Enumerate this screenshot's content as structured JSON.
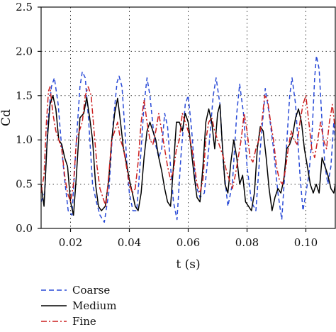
{
  "chart_data": {
    "type": "line",
    "title": "",
    "xlabel": "t (s)",
    "ylabel": "Cd",
    "xlim": [
      0.01,
      0.11
    ],
    "ylim": [
      0.0,
      2.5
    ],
    "x_ticks": [
      0.02,
      0.04,
      0.06,
      0.08,
      0.1
    ],
    "x_tick_labels": [
      "0.02",
      "0.04",
      "0.06",
      "0.08",
      "0.10"
    ],
    "y_ticks": [
      0.0,
      0.5,
      1.0,
      1.5,
      2.0,
      2.5
    ],
    "y_tick_labels": [
      "0.0",
      "0.5",
      "1.0",
      "1.5",
      "2.0",
      "2.5"
    ],
    "grid": "dotted",
    "legend_position": "bottom-left",
    "series": [
      {
        "name": "Coarse",
        "color": "#2a4bd7",
        "dash": "dashed",
        "points": [
          [
            0.01,
            0.3
          ],
          [
            0.0112,
            0.4
          ],
          [
            0.0123,
            1.2
          ],
          [
            0.0135,
            1.6
          ],
          [
            0.0145,
            1.7
          ],
          [
            0.0158,
            1.4
          ],
          [
            0.017,
            0.9
          ],
          [
            0.018,
            0.55
          ],
          [
            0.0192,
            0.2
          ],
          [
            0.0205,
            0.15
          ],
          [
            0.0218,
            0.9
          ],
          [
            0.0232,
            1.6
          ],
          [
            0.024,
            1.77
          ],
          [
            0.025,
            1.7
          ],
          [
            0.0262,
            1.2
          ],
          [
            0.0275,
            0.5
          ],
          [
            0.0288,
            0.3
          ],
          [
            0.03,
            0.15
          ],
          [
            0.0315,
            0.07
          ],
          [
            0.033,
            0.4
          ],
          [
            0.0345,
            1.2
          ],
          [
            0.0358,
            1.65
          ],
          [
            0.0365,
            1.72
          ],
          [
            0.0375,
            1.6
          ],
          [
            0.0385,
            1.1
          ],
          [
            0.0392,
            0.7
          ],
          [
            0.04,
            0.4
          ],
          [
            0.0412,
            0.2
          ],
          [
            0.0425,
            0.2
          ],
          [
            0.0438,
            0.8
          ],
          [
            0.045,
            1.4
          ],
          [
            0.046,
            1.7
          ],
          [
            0.047,
            1.5
          ],
          [
            0.0485,
            1.0
          ],
          [
            0.05,
            0.8
          ],
          [
            0.051,
            0.9
          ],
          [
            0.052,
            1.3
          ],
          [
            0.053,
            1.15
          ],
          [
            0.054,
            0.7
          ],
          [
            0.055,
            0.3
          ],
          [
            0.0562,
            0.1
          ],
          [
            0.0575,
            0.8
          ],
          [
            0.059,
            1.4
          ],
          [
            0.06,
            1.5
          ],
          [
            0.0612,
            1.1
          ],
          [
            0.0625,
            0.5
          ],
          [
            0.064,
            0.35
          ],
          [
            0.0655,
            0.4
          ],
          [
            0.067,
            0.9
          ],
          [
            0.0685,
            1.5
          ],
          [
            0.0695,
            1.7
          ],
          [
            0.0708,
            1.4
          ],
          [
            0.072,
            0.7
          ],
          [
            0.0735,
            0.25
          ],
          [
            0.075,
            0.5
          ],
          [
            0.0765,
            1.3
          ],
          [
            0.0775,
            1.63
          ],
          [
            0.0788,
            1.3
          ],
          [
            0.08,
            0.7
          ],
          [
            0.0815,
            0.3
          ],
          [
            0.083,
            0.2
          ],
          [
            0.0845,
            0.9
          ],
          [
            0.0858,
            1.4
          ],
          [
            0.0862,
            1.58
          ],
          [
            0.0875,
            1.3
          ],
          [
            0.089,
            0.9
          ],
          [
            0.0905,
            0.4
          ],
          [
            0.0918,
            0.1
          ],
          [
            0.093,
            0.7
          ],
          [
            0.0945,
            1.5
          ],
          [
            0.0953,
            1.7
          ],
          [
            0.0965,
            1.4
          ],
          [
            0.098,
            0.6
          ],
          [
            0.099,
            0.2
          ],
          [
            0.1,
            0.4
          ],
          [
            0.101,
            0.6
          ],
          [
            0.102,
            1.0
          ],
          [
            0.103,
            1.7
          ],
          [
            0.1036,
            1.95
          ],
          [
            0.1045,
            1.8
          ],
          [
            0.1055,
            1.2
          ],
          [
            0.1065,
            0.7
          ],
          [
            0.1075,
            0.5
          ],
          [
            0.1085,
            0.7
          ],
          [
            0.1095,
            1.2
          ],
          [
            0.11,
            1.0
          ]
        ]
      },
      {
        "name": "Medium",
        "color": "#000000",
        "dash": "solid",
        "points": [
          [
            0.01,
            0.5
          ],
          [
            0.011,
            0.25
          ],
          [
            0.012,
            0.95
          ],
          [
            0.013,
            1.4
          ],
          [
            0.014,
            1.5
          ],
          [
            0.015,
            1.35
          ],
          [
            0.016,
            1.0
          ],
          [
            0.017,
            0.95
          ],
          [
            0.018,
            0.8
          ],
          [
            0.019,
            0.7
          ],
          [
            0.02,
            0.3
          ],
          [
            0.021,
            0.15
          ],
          [
            0.022,
            0.6
          ],
          [
            0.0232,
            1.25
          ],
          [
            0.0245,
            1.3
          ],
          [
            0.0255,
            1.48
          ],
          [
            0.0265,
            1.25
          ],
          [
            0.0275,
            1.0
          ],
          [
            0.0285,
            0.5
          ],
          [
            0.0295,
            0.25
          ],
          [
            0.0305,
            0.2
          ],
          [
            0.0318,
            0.25
          ],
          [
            0.033,
            0.55
          ],
          [
            0.034,
            1.0
          ],
          [
            0.035,
            1.3
          ],
          [
            0.036,
            1.47
          ],
          [
            0.037,
            1.2
          ],
          [
            0.038,
            0.9
          ],
          [
            0.0392,
            0.7
          ],
          [
            0.04,
            0.55
          ],
          [
            0.041,
            0.4
          ],
          [
            0.042,
            0.25
          ],
          [
            0.043,
            0.2
          ],
          [
            0.044,
            0.4
          ],
          [
            0.045,
            0.8
          ],
          [
            0.046,
            1.1
          ],
          [
            0.047,
            1.2
          ],
          [
            0.048,
            1.1
          ],
          [
            0.049,
            1.0
          ],
          [
            0.05,
            0.8
          ],
          [
            0.051,
            0.65
          ],
          [
            0.052,
            0.45
          ],
          [
            0.053,
            0.3
          ],
          [
            0.054,
            0.25
          ],
          [
            0.055,
            0.7
          ],
          [
            0.056,
            1.2
          ],
          [
            0.057,
            1.2
          ],
          [
            0.058,
            1.1
          ],
          [
            0.059,
            1.3
          ],
          [
            0.06,
            1.2
          ],
          [
            0.061,
            0.9
          ],
          [
            0.062,
            0.6
          ],
          [
            0.063,
            0.35
          ],
          [
            0.064,
            0.3
          ],
          [
            0.065,
            0.7
          ],
          [
            0.066,
            1.2
          ],
          [
            0.067,
            1.35
          ],
          [
            0.068,
            1.2
          ],
          [
            0.069,
            0.9
          ],
          [
            0.07,
            1.3
          ],
          [
            0.0708,
            1.4
          ],
          [
            0.0715,
            1.0
          ],
          [
            0.0725,
            0.5
          ],
          [
            0.0735,
            0.4
          ],
          [
            0.0745,
            0.75
          ],
          [
            0.0755,
            1.0
          ],
          [
            0.0765,
            0.8
          ],
          [
            0.0775,
            0.5
          ],
          [
            0.0785,
            0.6
          ],
          [
            0.0795,
            0.3
          ],
          [
            0.0805,
            0.25
          ],
          [
            0.0815,
            0.2
          ],
          [
            0.0825,
            0.4
          ],
          [
            0.0835,
            0.9
          ],
          [
            0.0845,
            1.15
          ],
          [
            0.0855,
            1.1
          ],
          [
            0.0865,
            0.8
          ],
          [
            0.0875,
            0.45
          ],
          [
            0.0885,
            0.2
          ],
          [
            0.0895,
            0.35
          ],
          [
            0.0905,
            0.45
          ],
          [
            0.0915,
            0.4
          ],
          [
            0.0925,
            0.55
          ],
          [
            0.0935,
            0.9
          ],
          [
            0.0945,
            0.95
          ],
          [
            0.0955,
            1.05
          ],
          [
            0.0965,
            1.25
          ],
          [
            0.0975,
            1.35
          ],
          [
            0.0985,
            1.2
          ],
          [
            0.0995,
            0.9
          ],
          [
            0.1005,
            0.7
          ],
          [
            0.1015,
            0.5
          ],
          [
            0.1025,
            0.4
          ],
          [
            0.1035,
            0.5
          ],
          [
            0.1045,
            0.4
          ],
          [
            0.1055,
            0.8
          ],
          [
            0.1065,
            0.7
          ],
          [
            0.1075,
            0.6
          ],
          [
            0.1085,
            0.45
          ],
          [
            0.1095,
            0.4
          ],
          [
            0.11,
            0.5
          ]
        ]
      },
      {
        "name": "Fine",
        "color": "#cc1f1f",
        "dash": "dashdot",
        "points": [
          [
            0.01,
            0.4
          ],
          [
            0.011,
            0.6
          ],
          [
            0.0118,
            1.2
          ],
          [
            0.0125,
            1.55
          ],
          [
            0.013,
            1.6
          ],
          [
            0.014,
            1.3
          ],
          [
            0.015,
            1.1
          ],
          [
            0.016,
            1.0
          ],
          [
            0.017,
            0.9
          ],
          [
            0.018,
            0.6
          ],
          [
            0.019,
            0.4
          ],
          [
            0.02,
            0.3
          ],
          [
            0.021,
            0.5
          ],
          [
            0.022,
            1.0
          ],
          [
            0.023,
            1.1
          ],
          [
            0.024,
            1.2
          ],
          [
            0.025,
            1.5
          ],
          [
            0.026,
            1.6
          ],
          [
            0.027,
            1.5
          ],
          [
            0.028,
            1.1
          ],
          [
            0.029,
            0.7
          ],
          [
            0.03,
            0.45
          ],
          [
            0.031,
            0.35
          ],
          [
            0.032,
            0.25
          ],
          [
            0.033,
            0.6
          ],
          [
            0.034,
            1.0
          ],
          [
            0.035,
            1.1
          ],
          [
            0.036,
            1.2
          ],
          [
            0.037,
            1.0
          ],
          [
            0.038,
            0.9
          ],
          [
            0.039,
            0.7
          ],
          [
            0.04,
            0.5
          ],
          [
            0.041,
            0.4
          ],
          [
            0.042,
            0.45
          ],
          [
            0.043,
            0.75
          ],
          [
            0.044,
            1.2
          ],
          [
            0.045,
            1.45
          ],
          [
            0.046,
            1.2
          ],
          [
            0.047,
            1.0
          ],
          [
            0.048,
            0.95
          ],
          [
            0.049,
            1.1
          ],
          [
            0.05,
            1.3
          ],
          [
            0.051,
            1.1
          ],
          [
            0.052,
            0.9
          ],
          [
            0.053,
            0.7
          ],
          [
            0.054,
            0.55
          ],
          [
            0.055,
            0.65
          ],
          [
            0.056,
            0.9
          ],
          [
            0.057,
            1.0
          ],
          [
            0.058,
            1.3
          ],
          [
            0.059,
            1.2
          ],
          [
            0.06,
            1.1
          ],
          [
            0.061,
            0.95
          ],
          [
            0.062,
            0.75
          ],
          [
            0.063,
            0.5
          ],
          [
            0.064,
            0.4
          ],
          [
            0.065,
            0.55
          ],
          [
            0.066,
            1.0
          ],
          [
            0.067,
            1.2
          ],
          [
            0.068,
            1.25
          ],
          [
            0.069,
            1.1
          ],
          [
            0.07,
            1.0
          ],
          [
            0.071,
            0.9
          ],
          [
            0.072,
            0.8
          ],
          [
            0.073,
            0.65
          ],
          [
            0.074,
            0.55
          ],
          [
            0.075,
            0.45
          ],
          [
            0.076,
            0.6
          ],
          [
            0.077,
            0.8
          ],
          [
            0.078,
            1.0
          ],
          [
            0.079,
            1.3
          ],
          [
            0.08,
            1.1
          ],
          [
            0.081,
            0.8
          ],
          [
            0.082,
            0.75
          ],
          [
            0.083,
            0.9
          ],
          [
            0.084,
            1.0
          ],
          [
            0.085,
            1.2
          ],
          [
            0.086,
            1.5
          ],
          [
            0.087,
            1.45
          ],
          [
            0.088,
            1.2
          ],
          [
            0.089,
            1.0
          ],
          [
            0.09,
            0.7
          ],
          [
            0.091,
            0.55
          ],
          [
            0.092,
            0.5
          ],
          [
            0.093,
            0.65
          ],
          [
            0.094,
            0.9
          ],
          [
            0.095,
            1.1
          ],
          [
            0.096,
            1.0
          ],
          [
            0.097,
            0.95
          ],
          [
            0.098,
            1.2
          ],
          [
            0.099,
            1.4
          ],
          [
            0.1,
            1.5
          ],
          [
            0.101,
            1.2
          ],
          [
            0.102,
            0.9
          ],
          [
            0.103,
            0.8
          ],
          [
            0.104,
            1.0
          ],
          [
            0.105,
            1.2
          ],
          [
            0.106,
            1.0
          ],
          [
            0.107,
            0.9
          ],
          [
            0.108,
            1.2
          ],
          [
            0.109,
            1.4
          ],
          [
            0.11,
            1.1
          ]
        ]
      }
    ]
  }
}
